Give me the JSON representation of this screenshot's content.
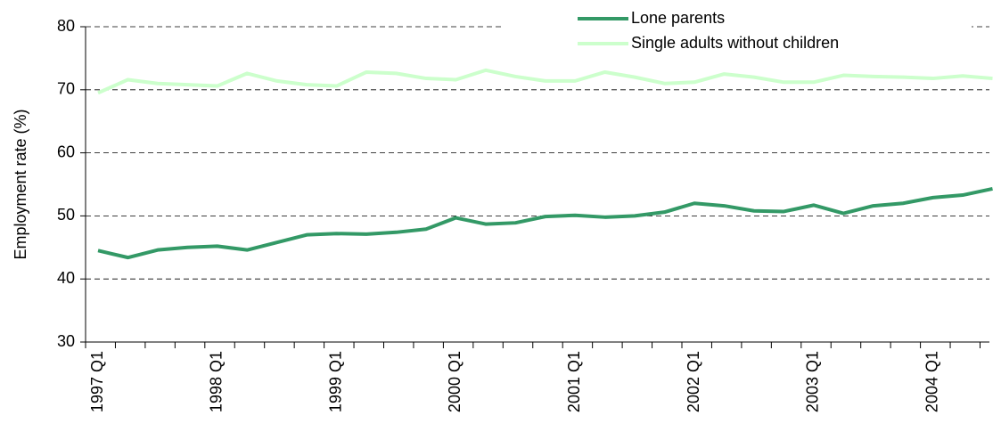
{
  "chart_data": {
    "type": "line",
    "ylabel": "Employment rate (%)",
    "categories": [
      "1997 Q1",
      null,
      null,
      null,
      "1998 Q1",
      null,
      null,
      null,
      "1999 Q1",
      null,
      null,
      null,
      "2000 Q1",
      null,
      null,
      null,
      "2001 Q1",
      null,
      null,
      null,
      "2002 Q1",
      null,
      null,
      null,
      "2003 Q1",
      null,
      null,
      null,
      "2004 Q1",
      null,
      null
    ],
    "series": [
      {
        "name": "Lone parents",
        "color": "#339966",
        "values": [
          44.5,
          43.4,
          44.6,
          45.0,
          45.2,
          44.6,
          45.8,
          47.0,
          47.2,
          47.1,
          47.4,
          47.9,
          49.7,
          48.7,
          48.9,
          49.9,
          50.1,
          49.8,
          50.0,
          50.6,
          52.0,
          51.6,
          50.8,
          50.7,
          51.7,
          50.4,
          51.6,
          52.0,
          52.9,
          53.3,
          54.3
        ]
      },
      {
        "name": "Single adults without children",
        "color": "#ccffcc",
        "values": [
          69.5,
          71.6,
          71.0,
          70.8,
          70.6,
          72.6,
          71.4,
          70.8,
          70.6,
          72.8,
          72.6,
          71.8,
          71.6,
          73.1,
          72.1,
          71.4,
          71.4,
          72.8,
          72.0,
          71.0,
          71.2,
          72.5,
          72.0,
          71.2,
          71.2,
          72.3,
          72.1,
          72.0,
          71.8,
          72.2,
          71.8
        ]
      }
    ],
    "ylim": [
      30,
      80
    ],
    "yticks": [
      30,
      40,
      50,
      60,
      70,
      80
    ],
    "grid": true,
    "legend": "top-right"
  }
}
